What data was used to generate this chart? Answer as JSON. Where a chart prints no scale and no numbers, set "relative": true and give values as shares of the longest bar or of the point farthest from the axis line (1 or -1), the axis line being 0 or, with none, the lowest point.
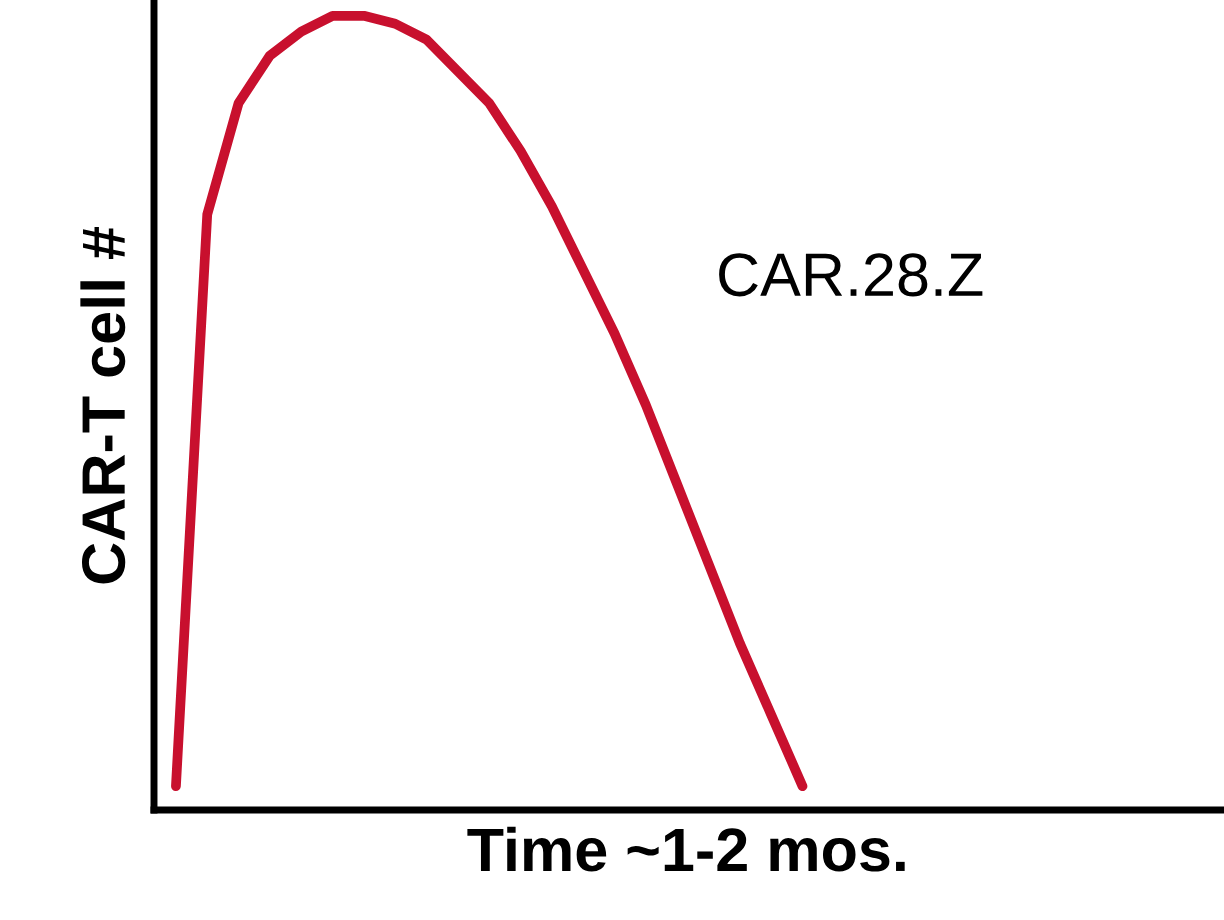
{
  "chart_data": {
    "type": "line",
    "relative": true,
    "xlabel": "Time ~1-2 mos.",
    "ylabel": "CAR-T cell #",
    "annotations": [
      "CAR.28.Z"
    ],
    "categories": [
      null,
      null,
      null,
      null,
      null,
      null,
      null,
      null,
      null,
      null,
      null,
      null,
      null,
      null,
      null,
      null,
      null,
      null,
      null,
      null,
      null
    ],
    "series": [
      {
        "color": "#c8102e",
        "values": [
          0.03,
          0.75,
          0.89,
          0.95,
          0.98,
          1.0,
          1.0,
          0.99,
          0.97,
          0.93,
          0.89,
          0.83,
          0.76,
          0.68,
          0.6,
          0.51,
          0.41,
          0.31,
          0.21,
          0.12,
          0.03
        ]
      }
    ],
    "legend": false,
    "marker": "none",
    "line_style": "solid",
    "tick_labels": false
  }
}
